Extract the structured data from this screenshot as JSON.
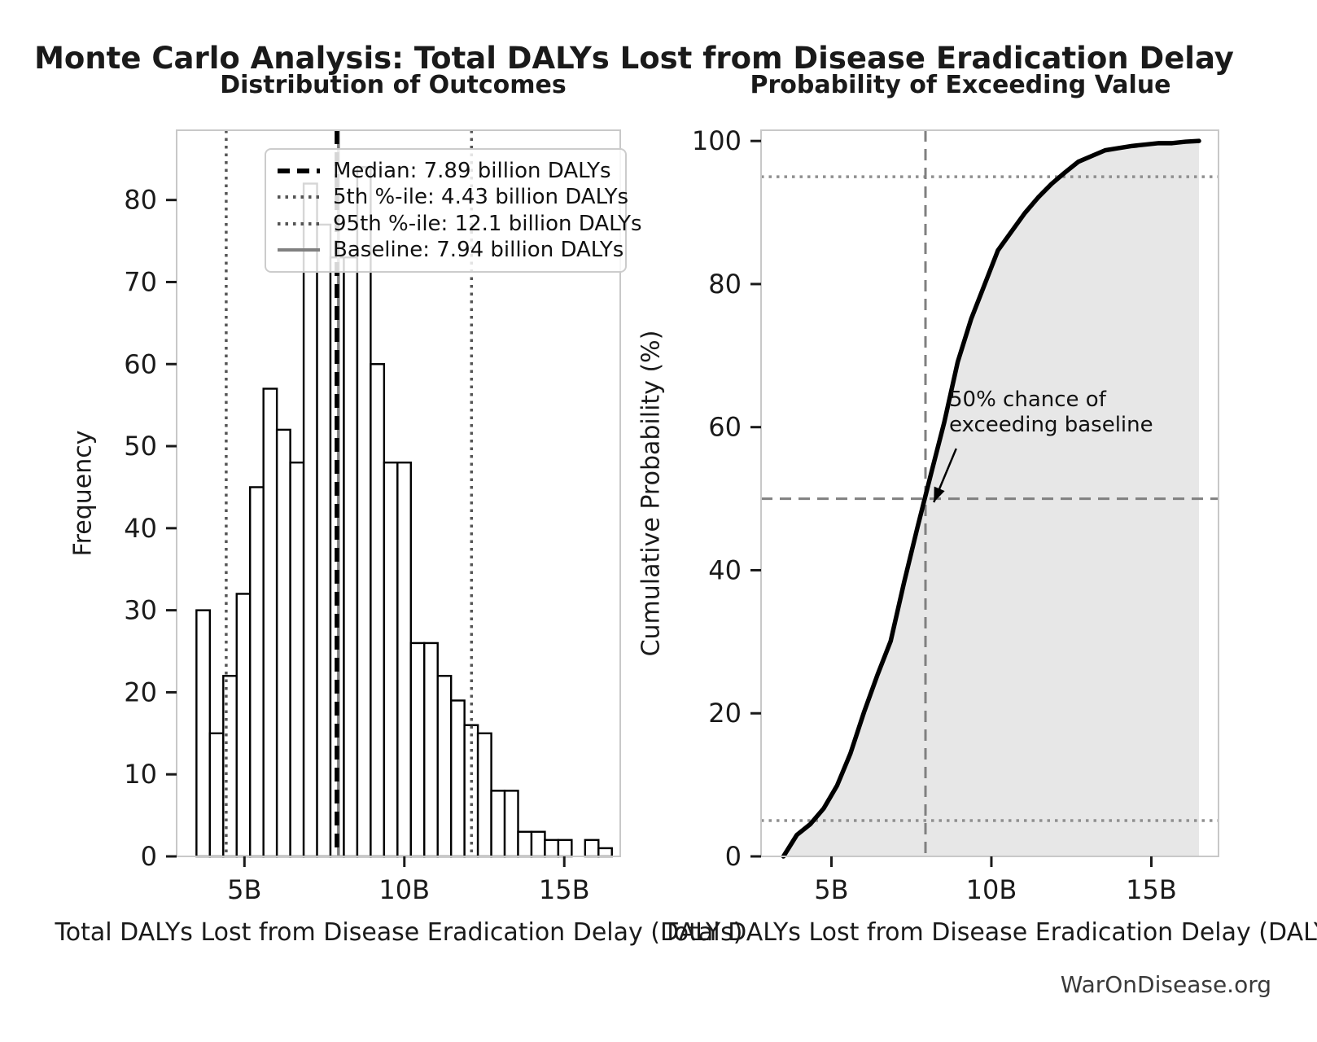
{
  "title": "Monte Carlo Analysis: Total DALYs Lost from Disease Eradication Delay",
  "watermark": "WarOnDisease.org",
  "colors": {
    "bar_fill": "#ffffff",
    "bar_edge": "#000000",
    "median_line": "#000000",
    "percentile_line": "#555555",
    "baseline_line": "#808080",
    "cdf_line": "#000000",
    "cdf_fill": "#e7e7e7",
    "ref_dashed": "#808080",
    "ref_dotted": "#909090",
    "spine": "#c8c8c8",
    "tick": "#1a1a1a",
    "text": "#1a1a1a",
    "watermark_text": "#3a3a3a"
  },
  "legend": {
    "items": [
      {
        "label": "Median: 7.89 billion DALYs",
        "style": "dashed-bold",
        "color": "#000000"
      },
      {
        "label": "5th %-ile: 4.43 billion DALYs",
        "style": "dotted",
        "color": "#555555"
      },
      {
        "label": "95th %-ile: 12.1 billion DALYs",
        "style": "dotted",
        "color": "#555555"
      },
      {
        "label": "Baseline: 7.94 billion DALYs",
        "style": "solid",
        "color": "#808080"
      }
    ]
  },
  "annotation": {
    "line1": "50% chance of",
    "line2": "exceeding baseline",
    "arrow": {
      "from_x": 8.9,
      "from_y": 57,
      "to_x": 8.2,
      "to_y": 49.5
    }
  },
  "chart_data": [
    {
      "type": "bar",
      "subtype": "histogram",
      "title": "Distribution of Outcomes",
      "xlabel": "Total DALYs Lost from Disease Eradication Delay (DALYs)",
      "ylabel": "Frequency",
      "bin_start": 3.5,
      "bin_width": 0.419,
      "unit": "billion DALYs",
      "frequencies": [
        30,
        15,
        22,
        32,
        45,
        57,
        52,
        48,
        82,
        77,
        73,
        73,
        84,
        60,
        48,
        48,
        26,
        26,
        22,
        19,
        16,
        15,
        8,
        8,
        3,
        3,
        2,
        2,
        0,
        2,
        1
      ],
      "xlim": [
        2.88,
        16.75
      ],
      "ylim": [
        0,
        88.5
      ],
      "xticks": [
        {
          "value": 5,
          "label": "5B"
        },
        {
          "value": 10,
          "label": "10B"
        },
        {
          "value": 15,
          "label": "15B"
        }
      ],
      "yticks": [
        {
          "value": 0,
          "label": "0"
        },
        {
          "value": 10,
          "label": "10"
        },
        {
          "value": 20,
          "label": "20"
        },
        {
          "value": 30,
          "label": "30"
        },
        {
          "value": 40,
          "label": "40"
        },
        {
          "value": 50,
          "label": "50"
        },
        {
          "value": 60,
          "label": "60"
        },
        {
          "value": 70,
          "label": "70"
        },
        {
          "value": 80,
          "label": "80"
        }
      ],
      "vlines": {
        "median": {
          "value": 7.89,
          "style": "dashed-bold"
        },
        "p5": {
          "value": 4.43,
          "style": "dotted"
        },
        "p95": {
          "value": 12.1,
          "style": "dotted"
        },
        "baseline": {
          "value": 7.94,
          "style": "solid"
        }
      },
      "grid": false,
      "legend_position": "upper center"
    },
    {
      "type": "line",
      "subtype": "cdf",
      "title": "Probability of Exceeding Value",
      "xlabel": "Total DALYs Lost from Disease Eradication Delay (DALYs)",
      "ylabel": "Cumulative Probability (%)",
      "x_bin_start": 3.5,
      "x_bin_width": 0.419,
      "cumulative_percent": [
        0,
        3.0,
        4.5,
        6.7,
        9.9,
        14.4,
        20.1,
        25.3,
        30.1,
        38.3,
        46.0,
        53.4,
        60.7,
        69.1,
        75.1,
        79.9,
        84.7,
        87.3,
        89.9,
        92.1,
        94.0,
        95.6,
        97.1,
        97.9,
        98.7,
        99.0,
        99.3,
        99.5,
        99.7,
        99.7,
        99.9,
        100.0
      ],
      "xlim": [
        2.8,
        17.1
      ],
      "ylim": [
        0,
        101.5
      ],
      "xticks": [
        {
          "value": 5,
          "label": "5B"
        },
        {
          "value": 10,
          "label": "10B"
        },
        {
          "value": 15,
          "label": "15B"
        }
      ],
      "yticks": [
        {
          "value": 0,
          "label": "0"
        },
        {
          "value": 20,
          "label": "20"
        },
        {
          "value": 40,
          "label": "40"
        },
        {
          "value": 60,
          "label": "60"
        },
        {
          "value": 80,
          "label": "80"
        },
        {
          "value": 100,
          "label": "100"
        }
      ],
      "reference_lines": {
        "baseline_vline": {
          "value": 7.94,
          "style": "dashed"
        },
        "p50_hline": {
          "value": 50,
          "style": "dashed"
        },
        "p95_hline": {
          "value": 95,
          "style": "dotted"
        },
        "p5_hline": {
          "value": 5,
          "style": "dotted"
        }
      },
      "fill_under_curve": true,
      "grid": false
    }
  ]
}
